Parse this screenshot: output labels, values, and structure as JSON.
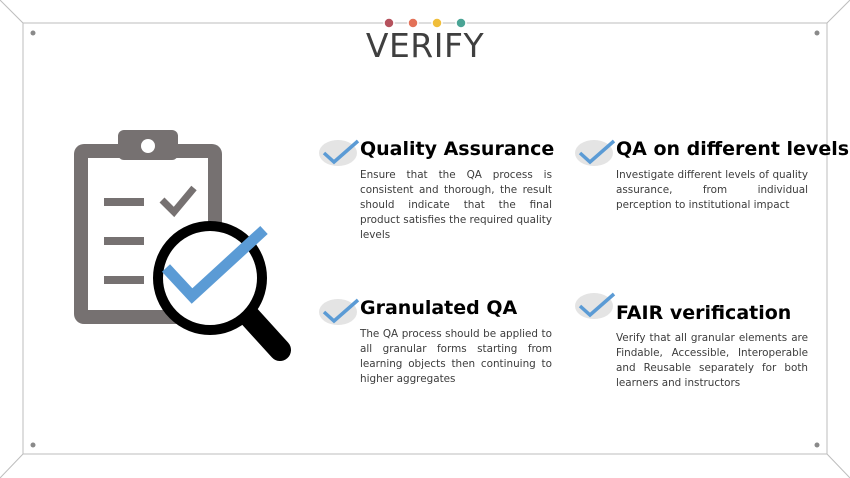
{
  "slide": {
    "title": "VERIFY",
    "header_dots": [
      "#b5525d",
      "#e37158",
      "#f0be3a",
      "#4aa495"
    ],
    "accent_color": "#5b9bd5",
    "items": [
      {
        "heading": "Quality Assurance",
        "body": "Ensure that the QA process is consistent and thorough, the result should indicate that the final product satisfies the required quality levels"
      },
      {
        "heading": "QA on different levels",
        "body": "Investigate different levels of quality assurance, from individual perception to institutional impact"
      },
      {
        "heading": "Granulated QA",
        "body": "The QA process should be applied to all granular forms starting from learning objects then continuing to higher aggregates"
      },
      {
        "heading": "FAIR verification",
        "body": "Verify that all granular elements are Findable, Accessible, Interoperable and Reusable separately for both learners and instructors"
      }
    ]
  }
}
